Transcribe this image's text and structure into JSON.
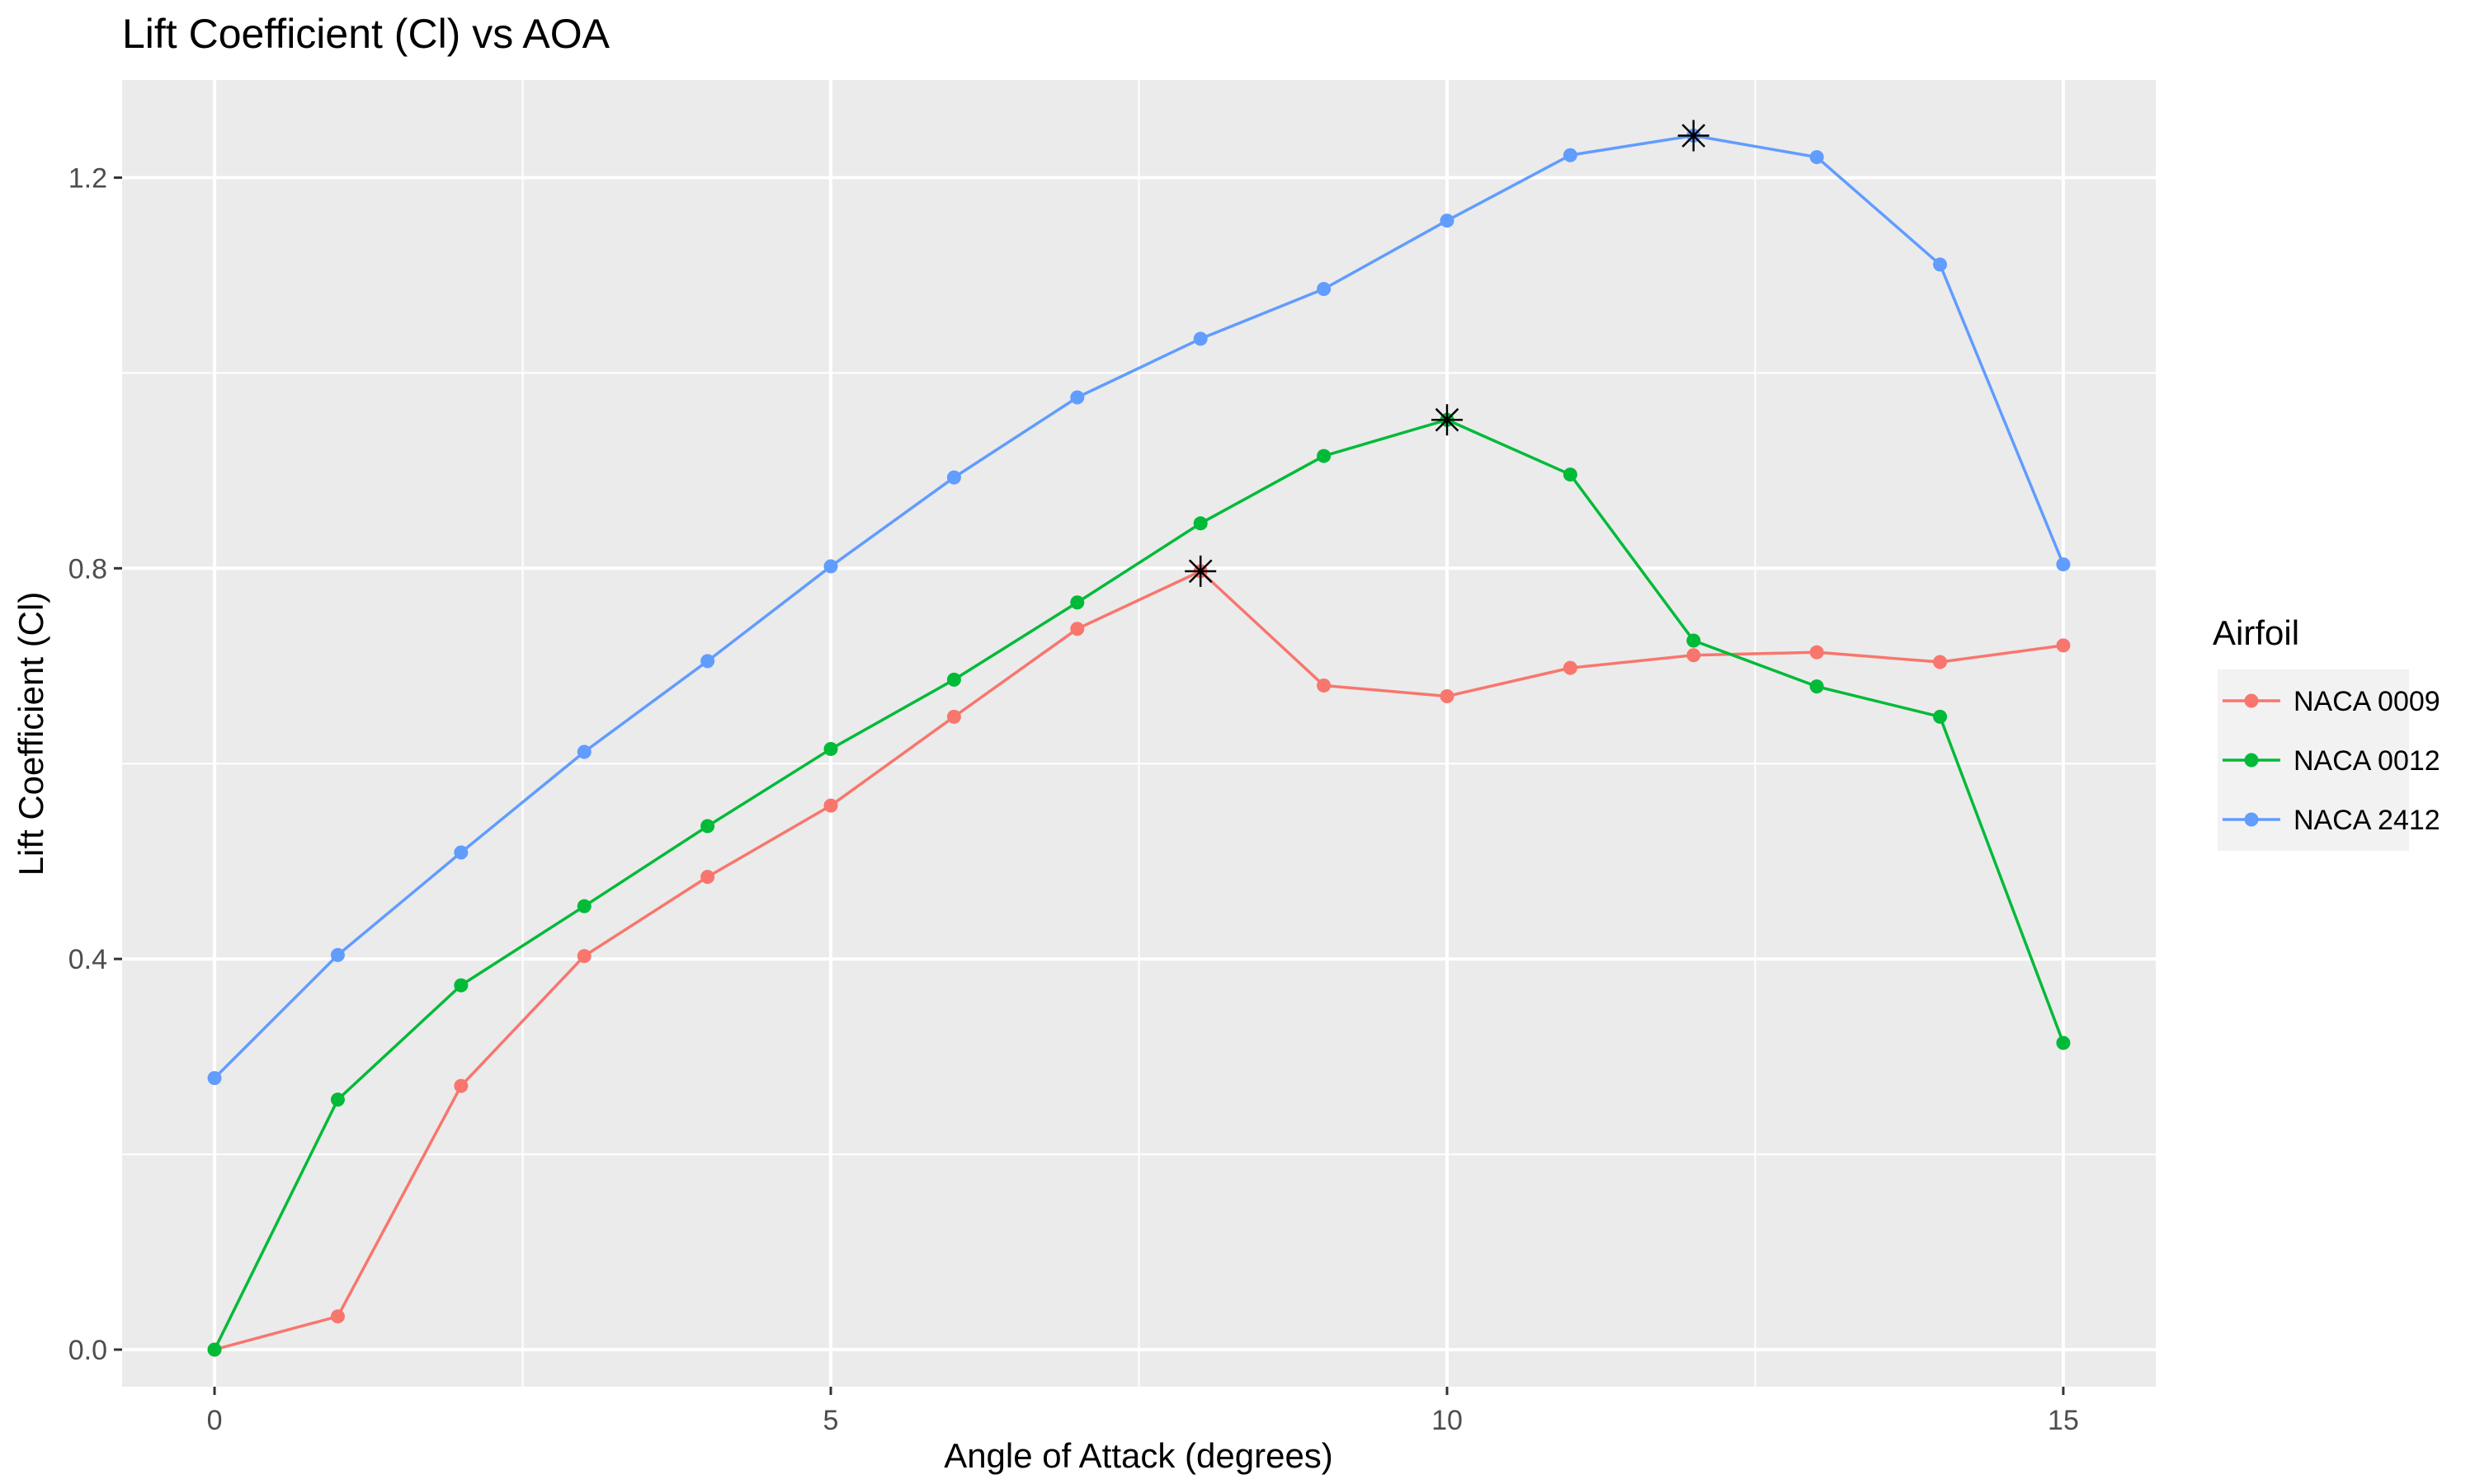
{
  "chart_data": {
    "type": "line",
    "title": "Lift Coefficient (Cl) vs AOA",
    "xlabel": "Angle of Attack (degrees)",
    "ylabel": "Lift Coefficient (Cl)",
    "xlim": [
      -0.75,
      15.75
    ],
    "ylim": [
      -0.038,
      1.3
    ],
    "x_ticks": [
      0,
      5,
      10,
      15
    ],
    "x_tick_labels": [
      "0",
      "5",
      "10",
      "15"
    ],
    "x_minor_ticks": [
      2.5,
      7.5,
      12.5
    ],
    "y_ticks": [
      0.0,
      0.4,
      0.8,
      1.2
    ],
    "y_tick_labels": [
      "0.0",
      "0.4",
      "0.8",
      "1.2"
    ],
    "y_minor_ticks": [
      0.2,
      0.6,
      1.0
    ],
    "grid": true,
    "legend": {
      "title": "Airfoil",
      "position": "right"
    },
    "x": [
      0,
      1,
      2,
      3,
      4,
      5,
      6,
      7,
      8,
      9,
      10,
      11,
      12,
      13,
      14,
      15
    ],
    "series": [
      {
        "name": "NACA 0009",
        "color": "#F8766D",
        "values": [
          0.0,
          0.034,
          0.27,
          0.403,
          0.484,
          0.557,
          0.648,
          0.738,
          0.797,
          0.68,
          0.669,
          0.698,
          0.711,
          0.714,
          0.704,
          0.721
        ]
      },
      {
        "name": "NACA 0012",
        "color": "#00BA38",
        "values": [
          0.0,
          0.256,
          0.373,
          0.454,
          0.536,
          0.615,
          0.686,
          0.765,
          0.846,
          0.915,
          0.952,
          0.896,
          0.726,
          0.679,
          0.648,
          0.314
        ]
      },
      {
        "name": "NACA 2412",
        "color": "#619CFF",
        "values": [
          0.278,
          0.404,
          0.509,
          0.612,
          0.705,
          0.802,
          0.893,
          0.975,
          1.035,
          1.086,
          1.156,
          1.223,
          1.243,
          1.221,
          1.111,
          0.804
        ]
      }
    ],
    "max_markers": [
      {
        "series": "NACA 0009",
        "x": 8,
        "y": 0.797
      },
      {
        "series": "NACA 0012",
        "x": 10,
        "y": 0.952
      },
      {
        "series": "NACA 2412",
        "x": 12,
        "y": 1.243
      }
    ]
  }
}
